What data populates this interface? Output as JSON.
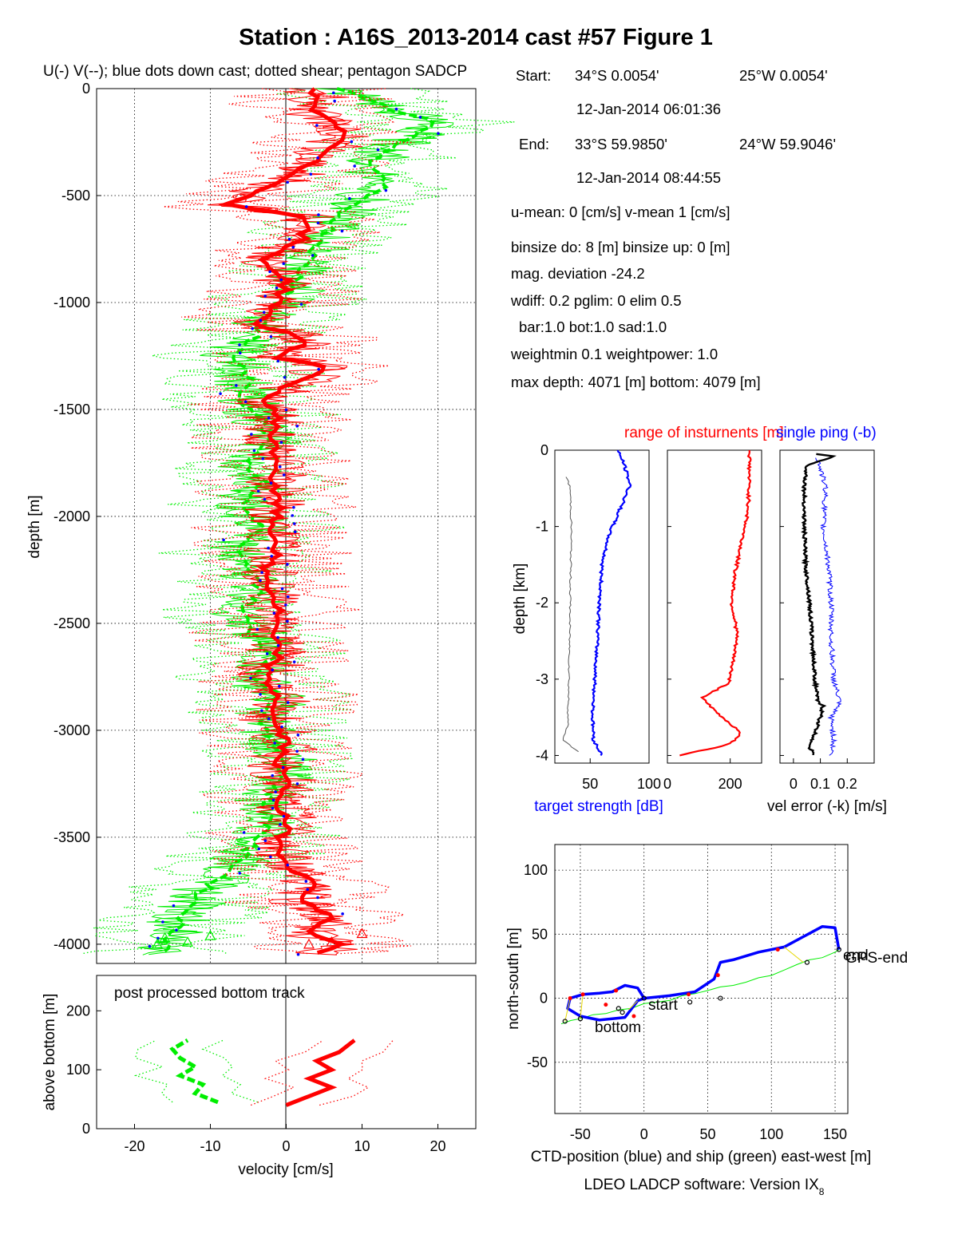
{
  "title": "Station : A16S_2013-2014 cast #57  Figure 1",
  "footer": "LDEO LADCP software: Version IX",
  "footer_subscript": "8",
  "colors": {
    "u": "#ff0000",
    "v": "#00ee00",
    "dots": "#0000ff",
    "ctd": "#0000ff",
    "ship": "#00ee00",
    "black": "#000000"
  },
  "info": {
    "start_label": "Start:",
    "start_lat": "34°S  0.0054'",
    "start_lon": "25°W  0.0054'",
    "start_time": "12-Jan-2014 06:01:36",
    "end_label": "End:",
    "end_lat": "33°S 59.9850'",
    "end_lon": "24°W 59.9046'",
    "end_time": "12-Jan-2014 08:44:55",
    "line_means": "u-mean:   0 [cm/s]    v-mean   1 [cm/s]",
    "line_bins": "binsize do: 8 [m]  binsize up:  0 [m]",
    "line_mag": "mag. deviation -24.2",
    "line_wdiff": "wdiff: 0.2  pglim: 0  elim 0.5",
    "line_bar": "bar:1.0 bot:1.0 sad:1.0",
    "line_weight": "weightmin 0.1  weightpower: 1.0",
    "line_depth": "max depth: 4071 [m]   bottom: 4079 [m]"
  },
  "chart_data": [
    {
      "type": "line",
      "name": "velocity profile",
      "title": "U(-) V(--); blue dots down cast; dotted shear; pentagon SADCP",
      "ylabel": "depth [m]",
      "xlim": [
        -25,
        25
      ],
      "ylim": [
        -4090,
        0
      ],
      "yticks": [
        0,
        -500,
        -1000,
        -1500,
        -2000,
        -2500,
        -3000,
        -3500,
        -4000
      ],
      "xgrid": [
        -20,
        -10,
        0,
        10,
        20
      ],
      "series": [
        {
          "name": "U",
          "values": [
            [
              4,
              0
            ],
            [
              3,
              -100
            ],
            [
              8,
              -200
            ],
            [
              5,
              -300
            ],
            [
              -1,
              -450
            ],
            [
              -8,
              -540
            ],
            [
              3,
              -600
            ],
            [
              2,
              -700
            ],
            [
              -3,
              -800
            ],
            [
              0,
              -900
            ],
            [
              -1,
              -1000
            ],
            [
              -4,
              -1100
            ],
            [
              1,
              -1150
            ],
            [
              3,
              -1200
            ],
            [
              -2,
              -1250
            ],
            [
              5,
              -1300
            ],
            [
              1,
              -1380
            ],
            [
              -3,
              -1450
            ],
            [
              -1,
              -1550
            ],
            [
              -2,
              -1650
            ],
            [
              -1,
              -1750
            ],
            [
              -2,
              -1850
            ],
            [
              -1,
              -1950
            ],
            [
              -2,
              -2050
            ],
            [
              -1,
              -2150
            ],
            [
              -3,
              -2250
            ],
            [
              -2,
              -2350
            ],
            [
              -1,
              -2450
            ],
            [
              -2,
              -2550
            ],
            [
              -1,
              -2650
            ],
            [
              -3,
              -2750
            ],
            [
              -1,
              -2850
            ],
            [
              -2,
              -2950
            ],
            [
              0,
              -3050
            ],
            [
              -1,
              -3150
            ],
            [
              0,
              -3250
            ],
            [
              -1,
              -3350
            ],
            [
              0,
              -3450
            ],
            [
              -1,
              -3550
            ],
            [
              1,
              -3650
            ],
            [
              4,
              -3730
            ],
            [
              2,
              -3800
            ],
            [
              6,
              -3870
            ],
            [
              3,
              -3950
            ],
            [
              7,
              -4000
            ],
            [
              4,
              -4050
            ]
          ]
        },
        {
          "name": "V",
          "values": [
            [
              7,
              0
            ],
            [
              14,
              -100
            ],
            [
              20,
              -160
            ],
            [
              15,
              -250
            ],
            [
              11,
              -350
            ],
            [
              13,
              -450
            ],
            [
              8,
              -550
            ],
            [
              6,
              -650
            ],
            [
              4,
              -750
            ],
            [
              2,
              -850
            ],
            [
              1,
              -950
            ],
            [
              -2,
              -1050
            ],
            [
              -4,
              -1150
            ],
            [
              -7,
              -1250
            ],
            [
              -5,
              -1350
            ],
            [
              -6,
              -1450
            ],
            [
              -3,
              -1550
            ],
            [
              -2,
              -1650
            ],
            [
              -5,
              -1750
            ],
            [
              -3,
              -1850
            ],
            [
              -6,
              -1950
            ],
            [
              -3,
              -2050
            ],
            [
              -7,
              -2150
            ],
            [
              -5,
              -2250
            ],
            [
              -3,
              -2350
            ],
            [
              -6,
              -2450
            ],
            [
              -4,
              -2550
            ],
            [
              -2,
              -2650
            ],
            [
              -4,
              -2750
            ],
            [
              -1,
              -2850
            ],
            [
              -3,
              -2950
            ],
            [
              -2,
              -3050
            ],
            [
              0,
              -3150
            ],
            [
              -1,
              -3250
            ],
            [
              -3,
              -3350
            ],
            [
              -2,
              -3450
            ],
            [
              -5,
              -3550
            ],
            [
              -7,
              -3650
            ],
            [
              -11,
              -3750
            ],
            [
              -13,
              -3850
            ],
            [
              -15,
              -3950
            ],
            [
              -16,
              -4050
            ]
          ]
        }
      ]
    },
    {
      "type": "line",
      "name": "bottom track",
      "annotation": "post processed bottom track",
      "xlabel": "velocity [cm/s]",
      "ylabel": "above bottom [m]",
      "xlim": [
        -25,
        25
      ],
      "ylim": [
        0,
        260
      ],
      "xticks": [
        -20,
        -10,
        0,
        10,
        20
      ],
      "yticks": [
        0,
        100,
        200
      ],
      "series": [
        {
          "name": "U",
          "values": [
            [
              0,
              40
            ],
            [
              3,
              55
            ],
            [
              6,
              70
            ],
            [
              3,
              85
            ],
            [
              6,
              100
            ],
            [
              4,
              115
            ],
            [
              7,
              130
            ],
            [
              9,
              150
            ]
          ]
        },
        {
          "name": "V",
          "values": [
            [
              -9,
              45
            ],
            [
              -12,
              60
            ],
            [
              -11,
              75
            ],
            [
              -14,
              90
            ],
            [
              -12,
              105
            ],
            [
              -14,
              120
            ],
            [
              -15,
              135
            ],
            [
              -13,
              150
            ]
          ]
        }
      ]
    },
    {
      "type": "line",
      "name": "target strength",
      "legend": "range of insturnents [m]",
      "ylabel": "depth [km]",
      "xlabel": "target strength [dB]",
      "xlim": [
        20,
        100
      ],
      "ylim": [
        -4.1,
        0
      ],
      "xticks": [
        50,
        100
      ],
      "yticks": [
        0,
        -1,
        -2,
        -3,
        -4
      ],
      "series": [
        {
          "name": "mean",
          "values": [
            [
              73,
              0
            ],
            [
              78,
              -0.15
            ],
            [
              84,
              -0.45
            ],
            [
              76,
              -0.75
            ],
            [
              66,
              -1.1
            ],
            [
              60,
              -1.5
            ],
            [
              58,
              -2.0
            ],
            [
              56,
              -2.5
            ],
            [
              54,
              -3.0
            ],
            [
              52,
              -3.5
            ],
            [
              53,
              -3.8
            ],
            [
              60,
              -4.0
            ]
          ]
        },
        {
          "name": "min",
          "values": [
            [
              30,
              -0.35
            ],
            [
              33,
              -0.5
            ],
            [
              34,
              -1.0
            ],
            [
              33,
              -2.0
            ],
            [
              32,
              -3.0
            ],
            [
              31,
              -3.6
            ],
            [
              27,
              -3.8
            ],
            [
              40,
              -3.95
            ]
          ]
        }
      ]
    },
    {
      "type": "line",
      "name": "range of instruments",
      "xlim": [
        0,
        300
      ],
      "ylim": [
        -4.1,
        0
      ],
      "xticks": [
        0,
        200
      ],
      "series": [
        {
          "name": "range",
          "values": [
            [
              262,
              0
            ],
            [
              260,
              -0.4
            ],
            [
              257,
              -0.8
            ],
            [
              236,
              -1.2
            ],
            [
              216,
              -1.6
            ],
            [
              205,
              -2.0
            ],
            [
              222,
              -2.4
            ],
            [
              208,
              -2.8
            ],
            [
              195,
              -3.05
            ],
            [
              110,
              -3.25
            ],
            [
              160,
              -3.45
            ],
            [
              235,
              -3.7
            ],
            [
              200,
              -3.85
            ],
            [
              40,
              -4.0
            ]
          ]
        }
      ]
    },
    {
      "type": "line",
      "name": "velocity error",
      "legend": "single ping (-b)",
      "xlabel": "vel error (-k) [m/s]",
      "xlim": [
        -0.05,
        0.3
      ],
      "ylim": [
        -4.1,
        0
      ],
      "xticks": [
        0,
        0.1,
        0.2
      ],
      "series": [
        {
          "name": "error",
          "values": [
            [
              0.08,
              -0.05
            ],
            [
              0.15,
              -0.08
            ],
            [
              0.05,
              -0.2
            ],
            [
              0.04,
              -0.5
            ],
            [
              0.04,
              -1.0
            ],
            [
              0.045,
              -1.5
            ],
            [
              0.06,
              -2.0
            ],
            [
              0.07,
              -2.5
            ],
            [
              0.08,
              -3.0
            ],
            [
              0.09,
              -3.3
            ],
            [
              0.11,
              -3.35
            ],
            [
              0.1,
              -3.5
            ],
            [
              0.08,
              -3.7
            ],
            [
              0.06,
              -3.9
            ],
            [
              0.08,
              -4.0
            ]
          ]
        },
        {
          "name": "single ping",
          "values": [
            [
              0.09,
              -0.1
            ],
            [
              0.12,
              -0.5
            ],
            [
              0.11,
              -1.0
            ],
            [
              0.13,
              -1.5
            ],
            [
              0.14,
              -2.0
            ],
            [
              0.14,
              -2.5
            ],
            [
              0.15,
              -3.0
            ],
            [
              0.17,
              -3.3
            ],
            [
              0.14,
              -3.5
            ],
            [
              0.15,
              -3.8
            ],
            [
              0.14,
              -4.0
            ]
          ]
        }
      ]
    },
    {
      "type": "line",
      "name": "position",
      "xlabel": "CTD-position (blue) and ship (green) east-west [m]",
      "ylabel": "north-south [m]",
      "xlim": [
        -70,
        160
      ],
      "ylim": [
        -90,
        120
      ],
      "xticks": [
        -50,
        0,
        50,
        100,
        150
      ],
      "yticks": [
        100,
        50,
        0,
        -50
      ],
      "annotations": [
        "start",
        "bottom",
        "end",
        "GPS-end"
      ],
      "series": [
        {
          "name": "CTD",
          "values": [
            [
              0,
              0
            ],
            [
              -5,
              8
            ],
            [
              -15,
              10
            ],
            [
              -25,
              5
            ],
            [
              -35,
              4
            ],
            [
              -48,
              3
            ],
            [
              -58,
              0
            ],
            [
              -60,
              -8
            ],
            [
              -50,
              -14
            ],
            [
              -35,
              -17
            ],
            [
              -15,
              -15
            ],
            [
              -5,
              -2
            ],
            [
              0,
              0
            ],
            [
              20,
              2
            ],
            [
              40,
              5
            ],
            [
              55,
              15
            ],
            [
              60,
              28
            ],
            [
              70,
              30
            ],
            [
              90,
              36
            ],
            [
              110,
              40
            ],
            [
              125,
              48
            ],
            [
              140,
              56
            ],
            [
              150,
              55
            ],
            [
              153,
              38
            ]
          ]
        },
        {
          "name": "ship",
          "values": [
            [
              -65,
              -20
            ],
            [
              -50,
              -16
            ],
            [
              -30,
              -12
            ],
            [
              -10,
              -8
            ],
            [
              10,
              -3
            ],
            [
              30,
              2
            ],
            [
              50,
              6
            ],
            [
              70,
              10
            ],
            [
              90,
              16
            ],
            [
              110,
              22
            ],
            [
              130,
              30
            ],
            [
              150,
              36
            ],
            [
              153,
              38
            ]
          ]
        }
      ]
    }
  ]
}
